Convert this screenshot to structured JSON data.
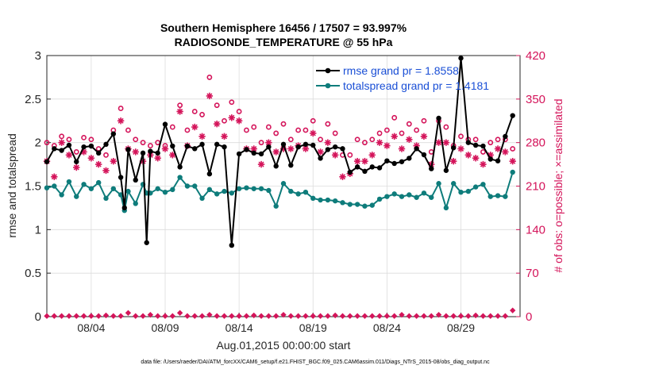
{
  "chart_data": {
    "type": "line",
    "title": "Southern Hemisphere 16456 / 17507 = 93.997%",
    "subtitle": "RADIOSONDE_TEMPERATURE @ 55 hPa",
    "xlabel": "Aug.01,2015 00:00:00 start",
    "ylabel_left": "rmse and totalspread",
    "ylabel_right": "# of obs: o=possible; ×=assimilated",
    "ylim_left": [
      0,
      3
    ],
    "ylim_right": [
      0,
      420
    ],
    "yticks_left": [
      "0",
      "0.5",
      "1",
      "1.5",
      "2",
      "2.5",
      "3"
    ],
    "yticks_right": [
      "0",
      "70",
      "140",
      "210",
      "280",
      "350",
      "420"
    ],
    "x_range": [
      1,
      33
    ],
    "x_ticks": [
      {
        "day": 4,
        "label": "08/04"
      },
      {
        "day": 9,
        "label": "08/09"
      },
      {
        "day": 14,
        "label": "08/14"
      },
      {
        "day": 19,
        "label": "08/19"
      },
      {
        "day": 24,
        "label": "08/24"
      },
      {
        "day": 29,
        "label": "08/29"
      }
    ],
    "legend": [
      {
        "name": "rmse grand pr = 1.8558",
        "color": "#000000"
      },
      {
        "name": "totalspread grand pr = 1.4181",
        "color": "#0e7c7b"
      }
    ],
    "series": [
      {
        "name": "rmse",
        "axis": "left",
        "color": "#000000",
        "x": [
          1,
          1.5,
          2,
          2.5,
          3,
          3.5,
          4,
          4.5,
          5,
          5.5,
          6,
          6.25,
          6.5,
          7,
          7.5,
          7.75,
          8,
          8.5,
          9,
          9.5,
          10,
          10.5,
          11,
          11.5,
          12,
          12.5,
          13,
          13.5,
          14,
          14.5,
          15,
          15.5,
          16,
          16.5,
          17,
          17.5,
          18,
          18.5,
          19,
          19.5,
          20,
          20.5,
          21,
          21.5,
          22,
          22.5,
          23,
          23.5,
          24,
          24.5,
          25,
          25.5,
          26,
          26.5,
          27,
          27.5,
          28,
          28.5,
          29,
          29.5,
          30,
          30.5,
          31,
          31.5,
          32,
          32.5
        ],
        "values": [
          1.78,
          1.93,
          1.91,
          1.97,
          1.78,
          1.95,
          1.96,
          1.88,
          1.98,
          2.1,
          1.6,
          1.25,
          1.92,
          1.57,
          1.88,
          0.85,
          1.9,
          1.88,
          2.21,
          1.96,
          1.72,
          1.96,
          1.93,
          1.98,
          1.64,
          1.98,
          1.95,
          0.82,
          1.87,
          1.92,
          1.88,
          1.87,
          1.95,
          1.73,
          1.98,
          1.74,
          1.95,
          1.98,
          1.97,
          1.82,
          1.92,
          1.95,
          1.93,
          1.66,
          1.72,
          1.67,
          1.72,
          1.71,
          1.79,
          1.76,
          1.78,
          1.82,
          1.93,
          1.86,
          1.7,
          2.28,
          1.68,
          1.94,
          2.97,
          2.0,
          1.97,
          1.96,
          1.81,
          1.79,
          2.07,
          2.31
        ]
      },
      {
        "name": "totalspread",
        "axis": "left",
        "color": "#0e7c7b",
        "x": [
          1,
          1.5,
          2,
          2.5,
          3,
          3.5,
          4,
          4.5,
          5,
          5.5,
          6,
          6.25,
          6.5,
          7,
          7.5,
          7.75,
          8,
          8.5,
          9,
          9.5,
          10,
          10.5,
          11,
          11.5,
          12,
          12.5,
          13,
          13.5,
          14,
          14.5,
          15,
          15.5,
          16,
          16.5,
          17,
          17.5,
          18,
          18.5,
          19,
          19.5,
          20,
          20.5,
          21,
          21.5,
          22,
          22.5,
          23,
          23.5,
          24,
          24.5,
          25,
          25.5,
          26,
          26.5,
          27,
          27.5,
          28,
          28.5,
          29,
          29.5,
          30,
          30.5,
          31,
          31.5,
          32,
          32.5
        ],
        "values": [
          1.48,
          1.5,
          1.4,
          1.55,
          1.38,
          1.52,
          1.47,
          1.54,
          1.36,
          1.47,
          1.4,
          1.22,
          1.44,
          1.3,
          1.52,
          1.42,
          1.42,
          1.47,
          1.43,
          1.46,
          1.6,
          1.5,
          1.5,
          1.36,
          1.46,
          1.41,
          1.44,
          1.42,
          1.47,
          1.48,
          1.47,
          1.47,
          1.45,
          1.27,
          1.53,
          1.44,
          1.41,
          1.43,
          1.36,
          1.34,
          1.34,
          1.33,
          1.31,
          1.29,
          1.29,
          1.27,
          1.28,
          1.35,
          1.38,
          1.41,
          1.38,
          1.4,
          1.37,
          1.42,
          1.37,
          1.53,
          1.25,
          1.53,
          1.43,
          1.44,
          1.49,
          1.52,
          1.38,
          1.39,
          1.38,
          1.66
        ]
      },
      {
        "name": "possible",
        "axis": "right",
        "color": "#d4145a",
        "marker": "o",
        "x": [
          1,
          1.5,
          2,
          2.5,
          3,
          3.5,
          4,
          4.5,
          5,
          5.5,
          6,
          6.5,
          7,
          7.5,
          8,
          8.5,
          9,
          9.5,
          10,
          10.5,
          11,
          11.5,
          12,
          12.5,
          13,
          13.5,
          14,
          14.5,
          15,
          15.5,
          16,
          16.5,
          17,
          17.5,
          18,
          18.5,
          19,
          19.5,
          20,
          20.5,
          21,
          21.5,
          22,
          22.5,
          23,
          23.5,
          24,
          24.5,
          25,
          25.5,
          26,
          26.5,
          27,
          27.5,
          28,
          28.5,
          29,
          29.5,
          30,
          30.5,
          31,
          31.5,
          32,
          32.5
        ],
        "values": [
          280,
          275,
          290,
          285,
          265,
          288,
          285,
          270,
          260,
          300,
          335,
          300,
          285,
          280,
          275,
          280,
          275,
          305,
          340,
          300,
          330,
          325,
          385,
          340,
          315,
          345,
          330,
          300,
          305,
          280,
          305,
          295,
          310,
          285,
          300,
          300,
          315,
          285,
          310,
          295,
          260,
          260,
          285,
          280,
          285,
          295,
          300,
          320,
          295,
          310,
          300,
          315,
          265,
          315,
          305,
          275,
          290,
          285,
          285,
          265,
          280,
          285,
          285,
          270
        ]
      },
      {
        "name": "assimilated",
        "axis": "right",
        "color": "#d4145a",
        "marker": "*",
        "x": [
          1,
          1.5,
          2,
          2.5,
          3,
          3.5,
          4,
          4.5,
          5,
          5.5,
          6,
          6.5,
          7,
          7.5,
          8,
          8.5,
          9,
          9.5,
          10,
          10.5,
          11,
          11.5,
          12,
          12.5,
          13,
          13.5,
          14,
          14.5,
          15,
          15.5,
          16,
          16.5,
          17,
          17.5,
          18,
          18.5,
          19,
          19.5,
          20,
          20.5,
          21,
          21.5,
          22,
          22.5,
          23,
          23.5,
          24,
          24.5,
          25,
          25.5,
          26,
          26.5,
          27,
          27.5,
          28,
          28.5,
          29,
          29.5,
          30,
          30.5,
          31,
          31.5,
          32,
          32.5
        ],
        "values": [
          250,
          225,
          280,
          260,
          240,
          265,
          255,
          245,
          235,
          250,
          315,
          270,
          265,
          250,
          260,
          255,
          270,
          260,
          330,
          275,
          305,
          290,
          355,
          310,
          290,
          320,
          315,
          270,
          270,
          245,
          280,
          265,
          270,
          270,
          275,
          270,
          295,
          265,
          280,
          260,
          225,
          230,
          250,
          250,
          260,
          280,
          275,
          290,
          270,
          285,
          275,
          290,
          245,
          280,
          280,
          250,
          270,
          260,
          255,
          245,
          260,
          270,
          265,
          250
        ]
      },
      {
        "name": "rejected",
        "axis": "right",
        "color": "#d4145a",
        "marker": "o",
        "x": [
          1,
          1.5,
          2,
          2.5,
          3,
          3.5,
          4,
          4.5,
          5,
          5.5,
          6,
          6.5,
          7,
          7.5,
          8,
          8.5,
          9,
          9.5,
          10,
          10.5,
          11,
          11.5,
          12,
          12.5,
          13,
          13.5,
          14,
          14.5,
          15,
          15.5,
          16,
          16.5,
          17,
          17.5,
          18,
          18.5,
          19,
          19.5,
          20,
          20.5,
          21,
          21.5,
          22,
          22.5,
          23,
          23.5,
          24,
          24.5,
          25,
          25.5,
          26,
          26.5,
          27,
          27.5,
          28,
          28.5,
          29,
          29.5,
          30,
          30.5,
          31,
          31.5,
          32,
          32.5
        ],
        "values": [
          1,
          1,
          1,
          1,
          1,
          1,
          1,
          1,
          2,
          1,
          1,
          6,
          1,
          1,
          3,
          1,
          1,
          1,
          6,
          1,
          1,
          1,
          3,
          1,
          1,
          1,
          1,
          1,
          2,
          1,
          1,
          1,
          3,
          1,
          1,
          1,
          1,
          1,
          1,
          2,
          1,
          1,
          1,
          1,
          1,
          1,
          1,
          1,
          3,
          1,
          1,
          1,
          1,
          3,
          1,
          1,
          1,
          1,
          2,
          1,
          1,
          1,
          1,
          10
        ]
      }
    ]
  },
  "footer": "data file: /Users/raeder/DAI/ATM_forcXX/CAM6_setup/f.e21.FHIST_BGC.f09_025.CAM6assim.011/Diags_NTrS_2015-08/obs_diag_output.nc"
}
